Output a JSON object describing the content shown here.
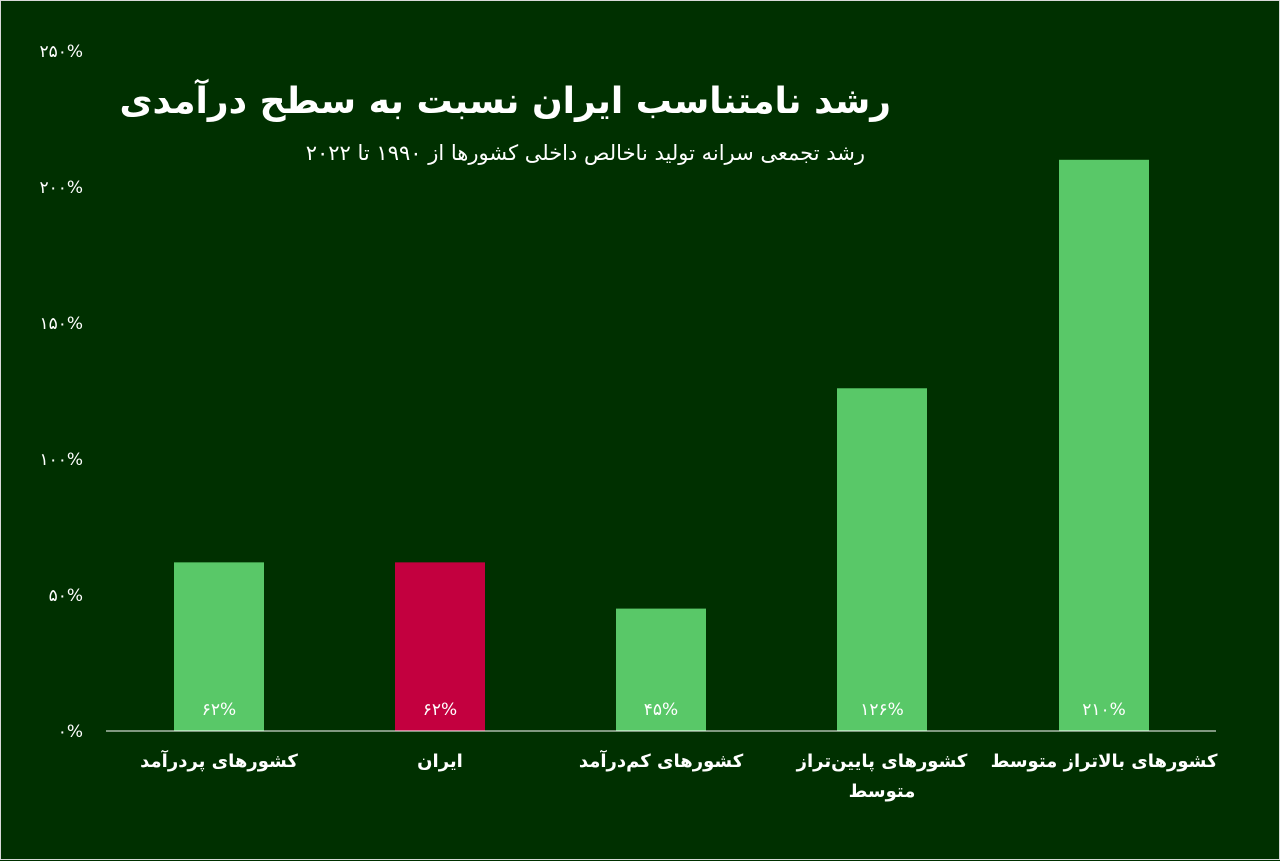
{
  "chart_data": {
    "type": "bar",
    "title": "رشد نامتناسب ایران نسبت به سطح درآمدی",
    "subtitle": "رشد تجمعی سرانه تولید ناخالص داخلی کشورها از ۱۹۹۰ تا ۲۰۲۲",
    "categories": [
      [
        "کشورهای پردرآمد"
      ],
      [
        "ایران"
      ],
      [
        "کشورهای کم‌درآمد"
      ],
      [
        "کشورهای پایین‌تراز",
        "متوسط"
      ],
      [
        "کشورهای بالاتراز متوسط"
      ]
    ],
    "values": [
      62,
      62,
      45,
      126,
      210
    ],
    "value_labels": [
      "۶۲%",
      "۶۲%",
      "۴۵%",
      "۱۲۶%",
      "۲۱۰%"
    ],
    "bar_colors": [
      "#59c868",
      "#c3003f",
      "#59c868",
      "#59c868",
      "#59c868"
    ],
    "ylim": [
      0,
      250
    ],
    "yticks": [
      0,
      50,
      100,
      150,
      200,
      250
    ],
    "ytick_labels": [
      "۰%",
      "۵۰%",
      "۱۰۰%",
      "۱۵۰%",
      "۲۰۰%",
      "۲۵۰%"
    ],
    "grid": false,
    "legend": "none",
    "colors": {
      "background": "#003000",
      "text": "#ffffff",
      "axis": "#ffffff"
    }
  }
}
